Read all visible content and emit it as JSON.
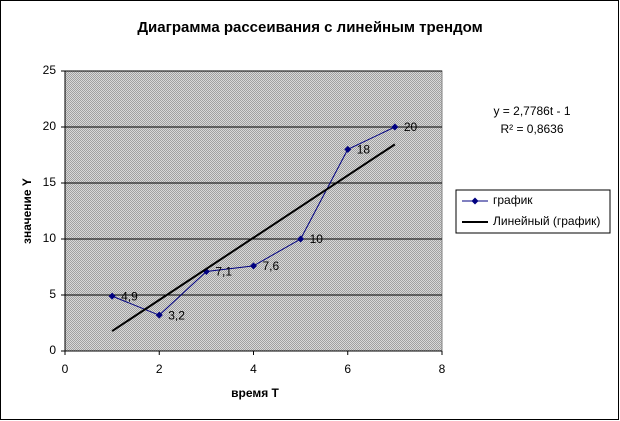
{
  "chart_data": {
    "type": "scatter",
    "title": "Диаграмма рассеивания с линейным трендом",
    "x_label": "время Т",
    "y_label": "значение Y",
    "xlim": [
      0,
      8
    ],
    "xticks": [
      0,
      2,
      4,
      6,
      8
    ],
    "ylim": [
      0,
      25
    ],
    "yticks": [
      0,
      5,
      10,
      15,
      20,
      25
    ],
    "grid": true,
    "legend": "right",
    "series": [
      {
        "name": "график",
        "color": "#000080",
        "x": [
          1,
          2,
          3,
          4,
          5,
          6,
          7
        ],
        "values": [
          4.9,
          3.2,
          7.1,
          7.6,
          10,
          18,
          20
        ],
        "value_labels": [
          "4,9",
          "3,2",
          "7,1",
          "7,6",
          "10",
          "18",
          "20"
        ]
      },
      {
        "name": "Линейный (график)",
        "color": "#000000",
        "x": [
          1,
          7
        ],
        "values": [
          1.7786,
          18.4502
        ]
      }
    ],
    "annotations": [
      "y = 2,7786t - 1",
      "R² = 0,8636"
    ]
  }
}
